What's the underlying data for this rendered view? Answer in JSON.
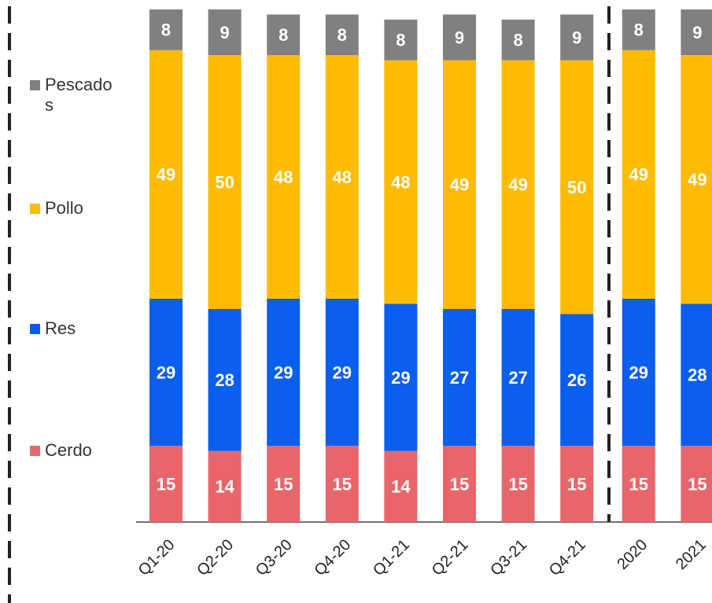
{
  "chart_data": {
    "type": "stacked-bar",
    "categories": [
      "Q1-20",
      "Q2-20",
      "Q3-20",
      "Q4-20",
      "Q1-21",
      "Q2-21",
      "Q3-21",
      "Q4-21",
      "2020",
      "2021"
    ],
    "series": [
      {
        "name": "Cerdo",
        "color": "#e8666a",
        "values": [
          15,
          14,
          15,
          15,
          14,
          15,
          15,
          15,
          15,
          15
        ]
      },
      {
        "name": "Res",
        "color": "#0a5ef0",
        "values": [
          29,
          28,
          29,
          29,
          29,
          27,
          27,
          26,
          29,
          28
        ]
      },
      {
        "name": "Pollo",
        "color": "#ffbb00",
        "values": [
          49,
          50,
          48,
          48,
          48,
          49,
          49,
          50,
          49,
          49
        ]
      },
      {
        "name": "Pescados",
        "color": "#808080",
        "values": [
          8,
          9,
          8,
          8,
          8,
          9,
          8,
          9,
          8,
          9
        ]
      }
    ]
  }
}
